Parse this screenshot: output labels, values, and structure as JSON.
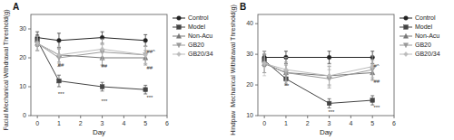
{
  "chart_data": [
    {
      "type": "line",
      "title": "A",
      "y_label": "Facial Mechanical Withdrawal Threshold(g)",
      "x_label": "Day",
      "x": [
        0,
        1,
        3,
        5
      ],
      "xlim": [
        -0.3,
        6
      ],
      "ylim": [
        0,
        35
      ],
      "xticks": [
        0,
        1,
        2,
        3,
        4,
        5,
        6
      ],
      "yticks": [
        0,
        10,
        20,
        30
      ],
      "grid": false,
      "legend": "right",
      "series": [
        {
          "name": "Control",
          "color": "#222222",
          "marker": "circle",
          "values": [
            27,
            26,
            27,
            26
          ],
          "errors": [
            2.0,
            2.5,
            2.0,
            2.0
          ]
        },
        {
          "name": "Model",
          "color": "#444444",
          "marker": "square",
          "values": [
            26,
            12,
            10,
            9
          ],
          "errors": [
            2.0,
            2.0,
            1.5,
            1.5
          ]
        },
        {
          "name": "Non-Acu",
          "color": "#777777",
          "marker": "triangle-up",
          "values": [
            25,
            21,
            20,
            20
          ],
          "errors": [
            2.5,
            2.5,
            2.5,
            2.5
          ]
        },
        {
          "name": "GB20",
          "color": "#999999",
          "marker": "triangle-down",
          "values": [
            25,
            20,
            22,
            21
          ],
          "errors": [
            2.5,
            3.0,
            2.5,
            3.0
          ]
        },
        {
          "name": "GB20/34",
          "color": "#bbbbbb",
          "marker": "diamond",
          "values": [
            25,
            21,
            23,
            21
          ],
          "errors": [
            2.5,
            3.0,
            3.5,
            3.0
          ]
        }
      ],
      "annotations": [
        {
          "text": "##",
          "x": 0.95,
          "y": 17.0
        },
        {
          "text": "***",
          "x": 0.95,
          "y": 7.0
        },
        {
          "text": "##",
          "x": 2.95,
          "y": 16.5
        },
        {
          "text": "***",
          "x": 2.95,
          "y": 4.5
        },
        {
          "text": "##^",
          "x": 5.05,
          "y": 21.5
        },
        {
          "text": "##",
          "x": 5.05,
          "y": 16.0
        },
        {
          "text": "***",
          "x": 5.05,
          "y": 5.5
        }
      ]
    },
    {
      "type": "line",
      "title": "B",
      "y_label": "Hindpaw  Mechanical Withdrawal Threshold(g)",
      "x_label": "Day",
      "x": [
        0,
        1,
        3,
        5
      ],
      "xlim": [
        -0.3,
        6
      ],
      "ylim": [
        10,
        43
      ],
      "xticks": [
        0,
        1,
        2,
        3,
        4,
        5,
        6
      ],
      "yticks": [
        10,
        20,
        30,
        40
      ],
      "grid": false,
      "legend": "right",
      "series": [
        {
          "name": "Control",
          "color": "#222222",
          "marker": "circle",
          "values": [
            29,
            29,
            29,
            29
          ],
          "errors": [
            2.0,
            2.0,
            2.0,
            2.0
          ]
        },
        {
          "name": "Model",
          "color": "#444444",
          "marker": "square",
          "values": [
            28,
            22,
            14,
            15
          ],
          "errors": [
            2.0,
            2.0,
            1.5,
            1.5
          ]
        },
        {
          "name": "Non-Acu",
          "color": "#777777",
          "marker": "triangle-up",
          "values": [
            27,
            24,
            23,
            24
          ],
          "errors": [
            3.0,
            2.5,
            3.0,
            2.5
          ]
        },
        {
          "name": "GB20",
          "color": "#999999",
          "marker": "triangle-down",
          "values": [
            27,
            24,
            22,
            25
          ],
          "errors": [
            3.0,
            3.5,
            3.0,
            3.0
          ]
        },
        {
          "name": "GB20/34",
          "color": "#bbbbbb",
          "marker": "diamond",
          "values": [
            27,
            25,
            23,
            26
          ],
          "errors": [
            4.0,
            4.0,
            3.5,
            3.5
          ]
        }
      ],
      "annotations": [
        {
          "text": "**",
          "x": 0.95,
          "y": 19.0
        },
        {
          "text": "***",
          "x": 2.95,
          "y": 10.5
        },
        {
          "text": "#^",
          "x": 5.05,
          "y": 25.5
        },
        {
          "text": "##",
          "x": 5.05,
          "y": 20.5
        },
        {
          "text": "***",
          "x": 5.05,
          "y": 12.0
        }
      ]
    }
  ]
}
